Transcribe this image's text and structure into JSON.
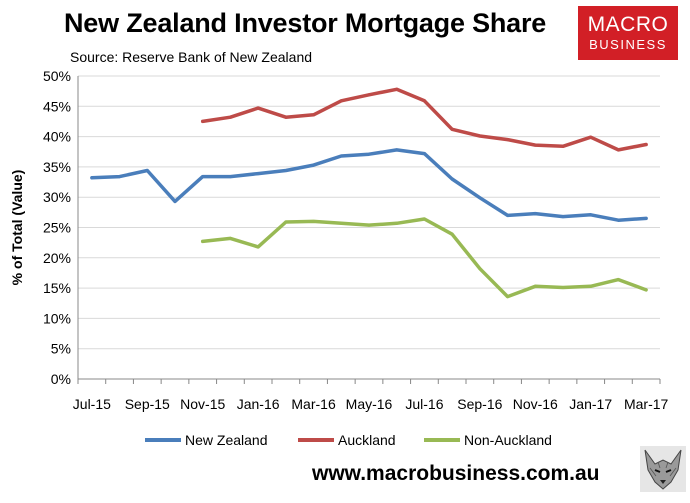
{
  "header": {
    "title": "New Zealand Investor Mortgage Share",
    "subtitle": "Source: Reserve Bank of New Zealand"
  },
  "logo": {
    "line1": "MACRO",
    "line2": "BUSINESS",
    "color": "#d21f26"
  },
  "footer": {
    "url": "www.macrobusiness.com.au"
  },
  "chart_data": {
    "type": "line",
    "title": "New Zealand Investor Mortgage Share",
    "subtitle": "Source: Reserve Bank of New Zealand",
    "ylabel": "% of Total (Value)",
    "xlabel": "",
    "ylim": [
      0,
      50
    ],
    "yticks": [
      "0%",
      "5%",
      "10%",
      "15%",
      "20%",
      "25%",
      "30%",
      "35%",
      "40%",
      "45%",
      "50%"
    ],
    "x": [
      "Jul-15",
      "Aug-15",
      "Sep-15",
      "Oct-15",
      "Nov-15",
      "Dec-15",
      "Jan-16",
      "Feb-16",
      "Mar-16",
      "Apr-16",
      "May-16",
      "Jun-16",
      "Jul-16",
      "Aug-16",
      "Sep-16",
      "Oct-16",
      "Nov-16",
      "Dec-16",
      "Jan-17",
      "Feb-17",
      "Mar-17"
    ],
    "xtick_labels": [
      "Jul-15",
      "Sep-15",
      "Nov-15",
      "Jan-16",
      "Mar-16",
      "May-16",
      "Jul-16",
      "Sep-16",
      "Nov-16",
      "Jan-17",
      "Mar-17"
    ],
    "grid": true,
    "legend": "bottom",
    "series": [
      {
        "name": "New Zealand",
        "color": "#4a7ebb",
        "values": [
          33.2,
          33.4,
          34.4,
          29.3,
          33.4,
          33.4,
          33.9,
          34.4,
          35.3,
          36.8,
          37.1,
          37.8,
          37.2,
          33.0,
          29.9,
          27.0,
          27.3,
          26.8,
          27.1,
          26.2,
          26.5
        ]
      },
      {
        "name": "Auckland",
        "color": "#be4b48",
        "values": [
          null,
          null,
          null,
          null,
          42.5,
          43.2,
          44.7,
          43.2,
          43.6,
          45.9,
          46.9,
          47.8,
          45.9,
          41.2,
          40.1,
          39.5,
          38.6,
          38.4,
          39.9,
          37.8,
          38.7
        ]
      },
      {
        "name": "Non-Auckland",
        "color": "#98b954",
        "values": [
          null,
          null,
          null,
          null,
          22.7,
          23.2,
          21.8,
          25.9,
          26.0,
          25.7,
          25.4,
          25.7,
          26.4,
          23.9,
          18.2,
          13.6,
          15.3,
          15.1,
          15.3,
          16.4,
          14.7
        ]
      }
    ]
  }
}
